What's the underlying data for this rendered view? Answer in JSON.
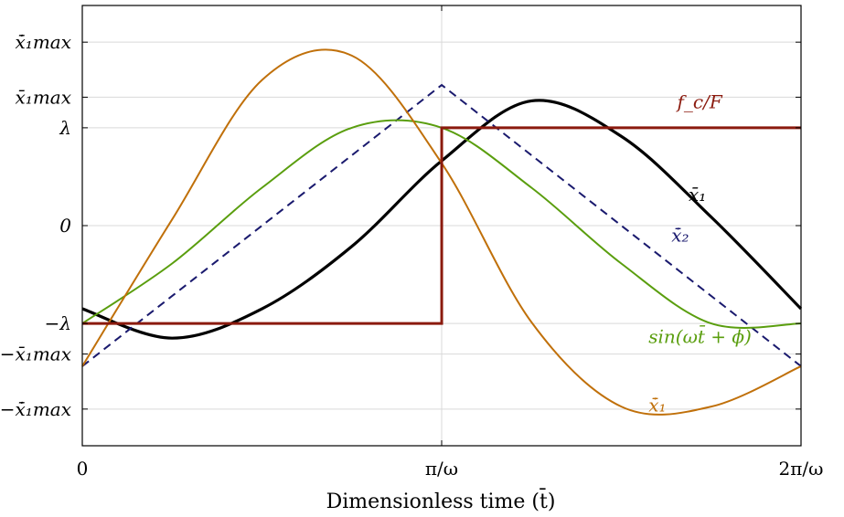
{
  "chart_data": {
    "type": "line",
    "title": "",
    "xlabel": "Dimensionless time (t̄)",
    "ylabel": "",
    "x_ticks": [
      {
        "value": 0,
        "label": "0"
      },
      {
        "value": 3.14159,
        "label": "π/ω"
      },
      {
        "value": 6.28319,
        "label": "2π/ω"
      }
    ],
    "y_ticks": [
      {
        "value": 1.5,
        "label": "x̄̇₁max",
        "color": "#000000"
      },
      {
        "value": 1.05,
        "label": "x̄₁max",
        "color": "#000000"
      },
      {
        "value": 0.8,
        "label": "λ",
        "color": "#8b1a0e"
      },
      {
        "value": 0,
        "label": "0",
        "color": "#000000"
      },
      {
        "value": -0.8,
        "label": "−λ",
        "color": "#8b1a0e"
      },
      {
        "value": -1.05,
        "label": "−x̄₁max",
        "color": "#000000"
      },
      {
        "value": -1.5,
        "label": "−x̄̇₁max",
        "color": "#000000"
      }
    ],
    "xlim": [
      0,
      6.28319
    ],
    "ylim": [
      -1.8,
      1.8
    ],
    "grid": true,
    "series": [
      {
        "name": "x̄₁",
        "color": "#000000",
        "style": "solid",
        "x": [
          0,
          0.785,
          1.571,
          2.356,
          3.142,
          3.927,
          4.712,
          5.498,
          6.283
        ],
        "y": [
          -0.68,
          -0.92,
          -0.68,
          -0.17,
          0.53,
          1.02,
          0.73,
          0.07,
          -0.68
        ]
      },
      {
        "name": "x̄̇₂",
        "color": "#1a1a6e",
        "style": "dashed",
        "x": [
          0,
          3.142,
          6.283
        ],
        "y": [
          -1.15,
          1.15,
          -1.15
        ]
      },
      {
        "name": "sin(ωt̄ + ϕ)",
        "color": "#5a9e0e",
        "style": "solid",
        "x": [
          0,
          0.785,
          1.571,
          2.356,
          3.142,
          3.927,
          4.712,
          5.498,
          6.283
        ],
        "y": [
          -0.8,
          -0.31,
          0.31,
          0.8,
          0.8,
          0.31,
          -0.31,
          -0.8,
          -0.8
        ]
      },
      {
        "name": "x̄̇₁",
        "color": "#c0700a",
        "style": "solid",
        "x": [
          0,
          0.785,
          1.571,
          2.356,
          3.142,
          3.927,
          4.712,
          5.498,
          6.283
        ],
        "y": [
          -1.15,
          0.05,
          1.19,
          1.39,
          0.51,
          -0.79,
          -1.48,
          -1.48,
          -1.15
        ]
      },
      {
        "name": "f_c/F",
        "color": "#8b1a0e",
        "style": "step",
        "x": [
          0,
          3.142,
          3.142,
          6.283
        ],
        "y": [
          -0.8,
          -0.8,
          0.8,
          0.8
        ]
      }
    ],
    "annotations": [
      {
        "text": "f_c/F",
        "color": "#8b1a0e"
      },
      {
        "text": "x̄₁",
        "color": "#000000"
      },
      {
        "text": "x̄̇₂",
        "color": "#1a1a6e"
      },
      {
        "text": "sin(ωt̄ + ϕ)",
        "color": "#5a9e0e"
      },
      {
        "text": "x̄̇₁",
        "color": "#c0700a"
      }
    ]
  }
}
